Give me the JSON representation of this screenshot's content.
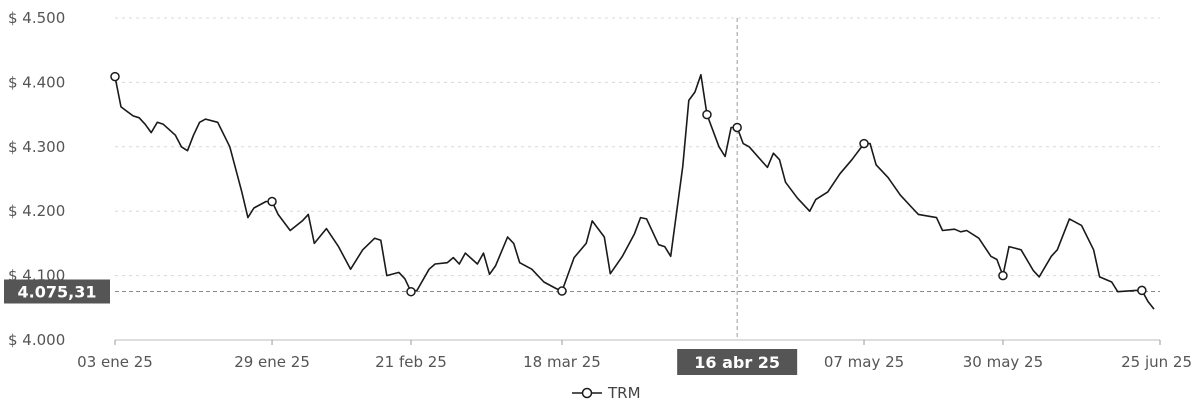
{
  "chart_data": {
    "type": "line",
    "series": [
      {
        "name": "TRM",
        "points": [
          [
            "2025-01-03",
            4409
          ],
          [
            "2025-01-04",
            4362
          ],
          [
            "2025-01-06",
            4348
          ],
          [
            "2025-01-07",
            4345
          ],
          [
            "2025-01-08",
            4335
          ],
          [
            "2025-01-09",
            4322
          ],
          [
            "2025-01-10",
            4338
          ],
          [
            "2025-01-11",
            4335
          ],
          [
            "2025-01-13",
            4318
          ],
          [
            "2025-01-14",
            4300
          ],
          [
            "2025-01-15",
            4294
          ],
          [
            "2025-01-16",
            4318
          ],
          [
            "2025-01-17",
            4338
          ],
          [
            "2025-01-18",
            4343
          ],
          [
            "2025-01-20",
            4338
          ],
          [
            "2025-01-22",
            4300
          ],
          [
            "2025-01-23",
            4265
          ],
          [
            "2025-01-24",
            4230
          ],
          [
            "2025-01-25",
            4190
          ],
          [
            "2025-01-26",
            4205
          ],
          [
            "2025-01-28",
            4215
          ],
          [
            "2025-01-29",
            4215
          ],
          [
            "2025-01-30",
            4195
          ],
          [
            "2025-02-01",
            4170
          ],
          [
            "2025-02-03",
            4185
          ],
          [
            "2025-02-04",
            4195
          ],
          [
            "2025-02-05",
            4150
          ],
          [
            "2025-02-07",
            4173
          ],
          [
            "2025-02-09",
            4145
          ],
          [
            "2025-02-11",
            4110
          ],
          [
            "2025-02-13",
            4140
          ],
          [
            "2025-02-15",
            4158
          ],
          [
            "2025-02-16",
            4155
          ],
          [
            "2025-02-17",
            4100
          ],
          [
            "2025-02-19",
            4105
          ],
          [
            "2025-02-20",
            4095
          ],
          [
            "2025-02-21",
            4075
          ],
          [
            "2025-02-22",
            4077
          ],
          [
            "2025-02-24",
            4110
          ],
          [
            "2025-02-25",
            4118
          ],
          [
            "2025-02-27",
            4120
          ],
          [
            "2025-02-28",
            4128
          ],
          [
            "2025-03-01",
            4118
          ],
          [
            "2025-03-02",
            4135
          ],
          [
            "2025-03-04",
            4118
          ],
          [
            "2025-03-05",
            4135
          ],
          [
            "2025-03-06",
            4102
          ],
          [
            "2025-03-07",
            4115
          ],
          [
            "2025-03-09",
            4160
          ],
          [
            "2025-03-10",
            4150
          ],
          [
            "2025-03-11",
            4120
          ],
          [
            "2025-03-13",
            4110
          ],
          [
            "2025-03-15",
            4090
          ],
          [
            "2025-03-17",
            4080
          ],
          [
            "2025-03-18",
            4076
          ],
          [
            "2025-03-20",
            4128
          ],
          [
            "2025-03-22",
            4150
          ],
          [
            "2025-03-23",
            4185
          ],
          [
            "2025-03-25",
            4160
          ],
          [
            "2025-03-26",
            4103
          ],
          [
            "2025-03-28",
            4130
          ],
          [
            "2025-03-30",
            4165
          ],
          [
            "2025-03-31",
            4190
          ],
          [
            "2025-04-01",
            4188
          ],
          [
            "2025-04-03",
            4148
          ],
          [
            "2025-04-04",
            4145
          ],
          [
            "2025-04-05",
            4130
          ],
          [
            "2025-04-07",
            4270
          ],
          [
            "2025-04-08",
            4372
          ],
          [
            "2025-04-09",
            4385
          ],
          [
            "2025-04-10",
            4412
          ],
          [
            "2025-04-11",
            4350
          ],
          [
            "2025-04-13",
            4300
          ],
          [
            "2025-04-14",
            4285
          ],
          [
            "2025-04-15",
            4330
          ],
          [
            "2025-04-16",
            4330
          ],
          [
            "2025-04-17",
            4305
          ],
          [
            "2025-04-18",
            4300
          ],
          [
            "2025-04-21",
            4268
          ],
          [
            "2025-04-22",
            4290
          ],
          [
            "2025-04-23",
            4280
          ],
          [
            "2025-04-24",
            4245
          ],
          [
            "2025-04-26",
            4220
          ],
          [
            "2025-04-28",
            4200
          ],
          [
            "2025-04-29",
            4218
          ],
          [
            "2025-05-01",
            4230
          ],
          [
            "2025-05-03",
            4258
          ],
          [
            "2025-05-05",
            4280
          ],
          [
            "2025-05-07",
            4305
          ],
          [
            "2025-05-08",
            4305
          ],
          [
            "2025-05-09",
            4272
          ],
          [
            "2025-05-11",
            4252
          ],
          [
            "2025-05-13",
            4225
          ],
          [
            "2025-05-15",
            4205
          ],
          [
            "2025-05-16",
            4195
          ],
          [
            "2025-05-19",
            4190
          ],
          [
            "2025-05-20",
            4170
          ],
          [
            "2025-05-22",
            4172
          ],
          [
            "2025-05-23",
            4168
          ],
          [
            "2025-05-24",
            4170
          ],
          [
            "2025-05-26",
            4158
          ],
          [
            "2025-05-28",
            4130
          ],
          [
            "2025-05-29",
            4125
          ],
          [
            "2025-05-30",
            4100
          ],
          [
            "2025-05-31",
            4145
          ],
          [
            "2025-06-02",
            4140
          ],
          [
            "2025-06-04",
            4108
          ],
          [
            "2025-06-05",
            4098
          ],
          [
            "2025-06-07",
            4130
          ],
          [
            "2025-06-08",
            4140
          ],
          [
            "2025-06-10",
            4188
          ],
          [
            "2025-06-12",
            4178
          ],
          [
            "2025-06-14",
            4140
          ],
          [
            "2025-06-15",
            4098
          ],
          [
            "2025-06-17",
            4090
          ],
          [
            "2025-06-18",
            4075
          ],
          [
            "2025-06-21",
            4077
          ],
          [
            "2025-06-22",
            4077
          ],
          [
            "2025-06-23",
            4060
          ],
          [
            "2025-06-24",
            4048
          ]
        ],
        "markers": [
          "2025-01-03",
          "2025-01-29",
          "2025-02-21",
          "2025-03-18",
          "2025-04-11",
          "2025-04-16",
          "2025-05-07",
          "2025-05-30",
          "2025-06-22"
        ]
      }
    ],
    "x_ticks": [
      {
        "date": "2025-01-03",
        "label": "03 ene 25"
      },
      {
        "date": "2025-01-29",
        "label": "29 ene 25"
      },
      {
        "date": "2025-02-21",
        "label": "21 feb 25"
      },
      {
        "date": "2025-03-18",
        "label": "18 mar 25"
      },
      {
        "date": "2025-05-07",
        "label": "07 may 25"
      },
      {
        "date": "2025-05-30",
        "label": "30 may 25"
      },
      {
        "date": "2025-06-25",
        "label": "25 jun 25"
      }
    ],
    "xlim": [
      "2025-01-03",
      "2025-06-25"
    ],
    "y_ticks": [
      {
        "value": 4000,
        "label": "$ 4.000"
      },
      {
        "value": 4100,
        "label": "$ 4.100"
      },
      {
        "value": 4200,
        "label": "$ 4.200"
      },
      {
        "value": 4300,
        "label": "$ 4.300"
      },
      {
        "value": 4400,
        "label": "$ 4.400"
      },
      {
        "value": 4500,
        "label": "$ 4.500"
      }
    ],
    "ylim": [
      4000,
      4500
    ],
    "grid": true,
    "crosshair": {
      "date": "2025-04-16",
      "x_label": "16 abr 25",
      "value": 4075.31,
      "y_label": "4.075,31"
    },
    "legend": {
      "position": "bottom-center",
      "label": "TRM"
    },
    "colors": {
      "line": "#1a1a1a",
      "grid": "#d8d8d8",
      "crosshair_label_bg": "#555555",
      "crosshair_label_text": "#ffffff"
    }
  }
}
